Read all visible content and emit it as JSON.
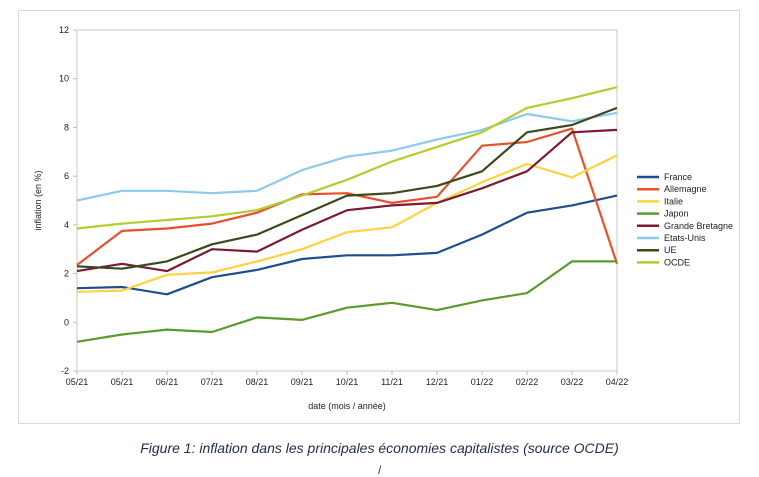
{
  "caption": "Figure 1: inflation dans les principales économies capitalistes (source OCDE)",
  "page_mark": "/",
  "chart_data": {
    "type": "line",
    "title": "",
    "xlabel": "date (mois / année)",
    "ylabel": "inflation (en %)",
    "ylim": [
      -2,
      12
    ],
    "yticks": [
      -2,
      0,
      2,
      4,
      6,
      8,
      10,
      12
    ],
    "grid": "off",
    "legend_position": "right",
    "categories": [
      "05/21",
      "05/21",
      "06/21",
      "07/21",
      "08/21",
      "09/21",
      "10/21",
      "11/21",
      "12/21",
      "01/22",
      "02/22",
      "03/22",
      "04/22"
    ],
    "series": [
      {
        "name": "France",
        "color": "#1f4e8c",
        "values": [
          1.4,
          1.45,
          1.15,
          1.85,
          2.15,
          2.6,
          2.75,
          2.75,
          2.85,
          3.6,
          4.5,
          4.8,
          5.2
        ]
      },
      {
        "name": "Allemagne",
        "color": "#e8502a",
        "values": [
          2.35,
          3.75,
          3.85,
          4.05,
          4.5,
          5.25,
          5.3,
          4.9,
          5.15,
          7.25,
          7.4,
          7.95,
          2.4
        ]
      },
      {
        "name": "Italie",
        "color": "#ffd23f",
        "values": [
          1.25,
          1.3,
          1.95,
          2.05,
          2.5,
          3.0,
          3.7,
          3.9,
          4.9,
          5.75,
          6.5,
          5.95,
          6.85
        ]
      },
      {
        "name": "Japon",
        "color": "#5a9b2e",
        "values": [
          -0.8,
          -0.5,
          -0.3,
          -0.4,
          0.2,
          0.1,
          0.6,
          0.8,
          0.5,
          0.9,
          1.2,
          2.5,
          2.5
        ]
      },
      {
        "name": "Grande Bretagne",
        "color": "#7b1a33",
        "values": [
          2.1,
          2.4,
          2.1,
          3.0,
          2.9,
          3.8,
          4.6,
          4.8,
          4.9,
          5.5,
          6.2,
          7.8,
          7.9
        ]
      },
      {
        "name": "Etats-Unis",
        "color": "#8ec9ee",
        "values": [
          5.0,
          5.4,
          5.4,
          5.3,
          5.4,
          6.25,
          6.8,
          7.05,
          7.5,
          7.9,
          8.55,
          8.25,
          8.6
        ]
      },
      {
        "name": "UE",
        "color": "#3a4a1a",
        "values": [
          2.3,
          2.2,
          2.5,
          3.2,
          3.6,
          4.4,
          5.2,
          5.3,
          5.6,
          6.2,
          7.8,
          8.1,
          8.8
        ]
      },
      {
        "name": "OCDE",
        "color": "#b5cc2e",
        "values": [
          3.85,
          4.05,
          4.2,
          4.35,
          4.6,
          5.2,
          5.85,
          6.6,
          7.2,
          7.8,
          8.8,
          9.2,
          9.65
        ]
      }
    ]
  }
}
